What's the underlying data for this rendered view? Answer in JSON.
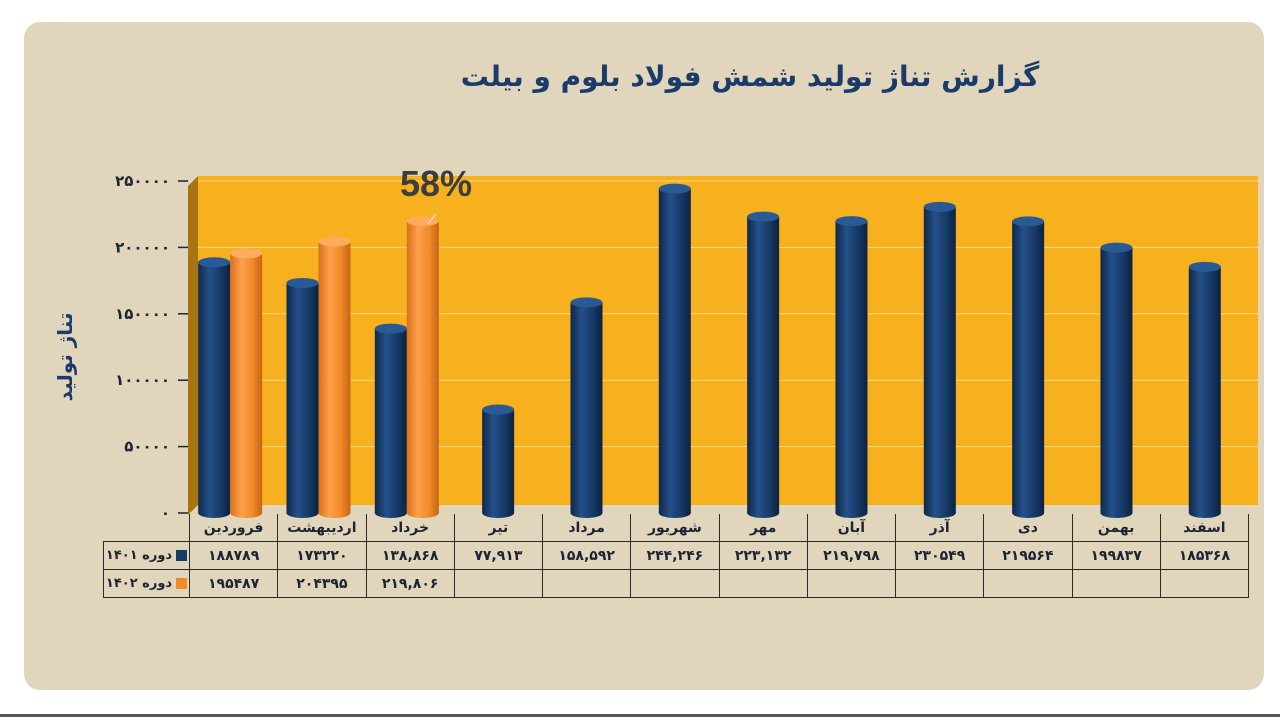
{
  "chart_data": {
    "type": "bar",
    "title": "گزارش تناژ تولید شمش فولاد بلوم و بیلت",
    "ylabel": "تناژ تولید",
    "xlabel": "",
    "ylim": [
      0,
      250000
    ],
    "yticks": [
      0,
      50000,
      100000,
      150000,
      200000,
      250000
    ],
    "ytick_labels": [
      "۰",
      "۵۰۰۰۰",
      "۱۰۰۰۰۰",
      "۱۵۰۰۰۰",
      "۲۰۰۰۰۰",
      "۲۵۰۰۰۰"
    ],
    "grid": true,
    "legend_placement": "table-left",
    "categories": [
      "فروردین",
      "اردیبهشت",
      "خرداد",
      "تیر",
      "مرداد",
      "شهریور",
      "مهر",
      "آبان",
      "آذر",
      "دی",
      "بهمن",
      "اسفند"
    ],
    "series": [
      {
        "name": "دوره ۱۴۰۱",
        "color": "#173a66",
        "values": [
          188789,
          173220,
          138868,
          77913,
          158592,
          244246,
          223132,
          219798,
          230549,
          219564,
          199837,
          185368
        ],
        "labels": [
          "۱۸۸۷۸۹",
          "۱۷۳۲۲۰",
          "۱۳۸,۸۶۸",
          "۷۷,۹۱۳",
          "۱۵۸,۵۹۲",
          "۲۴۴,۲۴۶",
          "۲۲۳,۱۳۲",
          "۲۱۹,۷۹۸",
          "۲۳۰۵۴۹",
          "۲۱۹۵۶۴",
          "۱۹۹۸۳۷",
          "۱۸۵۳۶۸"
        ]
      },
      {
        "name": "دوره ۱۴۰۲",
        "color": "#f08a2a",
        "values": [
          195487,
          204395,
          219806,
          null,
          null,
          null,
          null,
          null,
          null,
          null,
          null,
          null
        ],
        "labels": [
          "۱۹۵۴۸۷",
          "۲۰۴۳۹۵",
          "۲۱۹,۸۰۶",
          "",
          "",
          "",
          "",
          "",
          "",
          "",
          "",
          ""
        ]
      }
    ],
    "annotations": [
      {
        "text": "58%",
        "category": "خرداد"
      }
    ],
    "plot_background": "#f7b01e"
  }
}
